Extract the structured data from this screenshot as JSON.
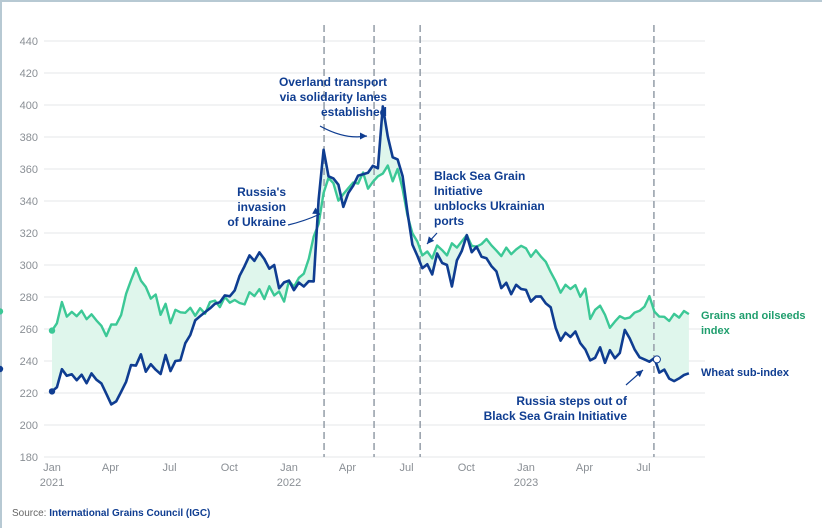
{
  "chart_data": {
    "type": "line",
    "title": "",
    "xlabel": "",
    "ylabel": "",
    "ylim": [
      180,
      440
    ],
    "yticks": [
      180,
      200,
      220,
      240,
      260,
      280,
      300,
      320,
      340,
      360,
      380,
      400,
      420,
      440
    ],
    "xlim": [
      "2021-01-01",
      "2023-09-15"
    ],
    "xticks": [
      {
        "date": "2021-01-01",
        "label": "Jan",
        "year": "2021"
      },
      {
        "date": "2021-04-01",
        "label": "Apr",
        "year": ""
      },
      {
        "date": "2021-07-01",
        "label": "Jul",
        "year": ""
      },
      {
        "date": "2021-10-01",
        "label": "Oct",
        "year": ""
      },
      {
        "date": "2022-01-01",
        "label": "Jan",
        "year": "2022"
      },
      {
        "date": "2022-04-01",
        "label": "Apr",
        "year": ""
      },
      {
        "date": "2022-07-01",
        "label": "Jul",
        "year": ""
      },
      {
        "date": "2022-10-01",
        "label": "Oct",
        "year": ""
      },
      {
        "date": "2023-01-01",
        "label": "Jan",
        "year": "2023"
      },
      {
        "date": "2023-04-01",
        "label": "Apr",
        "year": ""
      },
      {
        "date": "2023-07-01",
        "label": "Jul",
        "year": ""
      }
    ],
    "grid": true,
    "series": [
      {
        "name": "Grains and oilseeds index",
        "color": "#3cc896",
        "x_months": [
          0,
          0.25,
          0.5,
          0.75,
          1,
          1.25,
          1.5,
          1.75,
          2,
          2.25,
          2.5,
          2.75,
          3,
          3.25,
          3.5,
          3.75,
          4,
          4.25,
          4.5,
          4.75,
          5,
          5.25,
          5.5,
          5.75,
          6,
          6.25,
          6.5,
          6.75,
          7,
          7.25,
          7.5,
          7.75,
          8,
          8.25,
          8.5,
          8.75,
          9,
          9.25,
          9.5,
          9.75,
          10,
          10.25,
          10.5,
          10.75,
          11,
          11.25,
          11.5,
          11.75,
          12,
          12.25,
          12.5,
          12.75,
          13,
          13.25,
          13.5,
          13.75,
          14,
          14.25,
          14.5,
          14.75,
          15,
          15.25,
          15.5,
          15.75,
          16,
          16.25,
          16.5,
          16.75,
          17,
          17.25,
          17.5,
          17.75,
          18,
          18.25,
          18.5,
          18.75,
          19,
          19.25,
          19.5,
          19.75,
          20,
          20.25,
          20.5,
          20.75,
          21,
          21.25,
          21.5,
          21.75,
          22,
          22.25,
          22.5,
          22.75,
          23,
          23.25,
          23.5,
          23.75,
          24,
          24.25,
          24.5,
          24.75,
          25,
          25.25,
          25.5,
          25.75,
          26,
          26.25,
          26.5,
          26.75,
          27,
          27.25,
          27.5,
          27.75,
          28,
          28.25,
          28.5,
          28.75,
          29,
          29.25,
          29.5,
          29.75,
          30,
          30.25,
          30.5,
          30.75,
          31,
          31.25,
          31.5,
          31.75,
          32,
          32.25
        ],
        "values": [
          259,
          264,
          276,
          268,
          270,
          268,
          271,
          267,
          269,
          266,
          262,
          256,
          262,
          263,
          268,
          282,
          290,
          299,
          290,
          287,
          279,
          282,
          268,
          276,
          263,
          272,
          270,
          271,
          273,
          269,
          273,
          270,
          276,
          278,
          273,
          280,
          276,
          279,
          276,
          276,
          283,
          281,
          284,
          279,
          286,
          281,
          283,
          278,
          290,
          287,
          292,
          295,
          303,
          318,
          325,
          345,
          354,
          352,
          340,
          345,
          348,
          352,
          350,
          358,
          347,
          352,
          355,
          358,
          362,
          353,
          360,
          348,
          330,
          320,
          314,
          306,
          308,
          305,
          312,
          310,
          306,
          314,
          310,
          315,
          318,
          312,
          311,
          314,
          316,
          313,
          309,
          306,
          310,
          307,
          309,
          312,
          310,
          306,
          309,
          306,
          302,
          296,
          289,
          283,
          287,
          285,
          287,
          281,
          285,
          267,
          272,
          275,
          268,
          261,
          264,
          268,
          266,
          268,
          270,
          272,
          274,
          281,
          270,
          268,
          267,
          265,
          269,
          268,
          271,
          270,
          271
        ]
      },
      {
        "name": "Wheat sub-index",
        "color": "#0f3d91",
        "x_months": [
          0,
          0.25,
          0.5,
          0.75,
          1,
          1.25,
          1.5,
          1.75,
          2,
          2.25,
          2.5,
          2.75,
          3,
          3.25,
          3.5,
          3.75,
          4,
          4.25,
          4.5,
          4.75,
          5,
          5.25,
          5.5,
          5.75,
          6,
          6.25,
          6.5,
          6.75,
          7,
          7.25,
          7.5,
          7.75,
          8,
          8.25,
          8.5,
          8.75,
          9,
          9.25,
          9.5,
          9.75,
          10,
          10.25,
          10.5,
          10.75,
          11,
          11.25,
          11.5,
          11.75,
          12,
          12.25,
          12.5,
          12.75,
          13,
          13.25,
          13.5,
          13.75,
          14,
          14.25,
          14.5,
          14.75,
          15,
          15.25,
          15.5,
          15.75,
          16,
          16.25,
          16.5,
          16.75,
          17,
          17.25,
          17.5,
          17.75,
          18,
          18.25,
          18.5,
          18.75,
          19,
          19.25,
          19.5,
          19.75,
          20,
          20.25,
          20.5,
          20.75,
          21,
          21.25,
          21.5,
          21.75,
          22,
          22.25,
          22.5,
          22.75,
          23,
          23.25,
          23.5,
          23.75,
          24,
          24.25,
          24.5,
          24.75,
          25,
          25.25,
          25.5,
          25.75,
          26,
          26.25,
          26.5,
          26.75,
          27,
          27.25,
          27.5,
          27.75,
          28,
          28.25,
          28.5,
          28.75,
          29,
          29.25,
          29.5,
          29.75,
          30,
          30.25,
          30.5,
          30.75,
          31,
          31.25,
          31.5,
          31.75,
          32,
          32.25
        ],
        "values": [
          221,
          224,
          234,
          231,
          231,
          228,
          231,
          227,
          232,
          229,
          226,
          220,
          212,
          215,
          220,
          227,
          237,
          238,
          244,
          234,
          238,
          235,
          231,
          244,
          233,
          240,
          240,
          252,
          256,
          266,
          268,
          271,
          272,
          276,
          276,
          281,
          280,
          285,
          293,
          300,
          306,
          303,
          307,
          304,
          297,
          300,
          285,
          290,
          290,
          285,
          289,
          287,
          289,
          290,
          340,
          372,
          355,
          355,
          350,
          337,
          345,
          350,
          355,
          357,
          357,
          362,
          360,
          400,
          380,
          368,
          366,
          356,
          332,
          313,
          305,
          298,
          300,
          295,
          307,
          302,
          300,
          287,
          302,
          309,
          318,
          308,
          311,
          306,
          304,
          300,
          296,
          286,
          288,
          282,
          287,
          285,
          284,
          278,
          280,
          281,
          276,
          274,
          260,
          253,
          257,
          255,
          258,
          252,
          247,
          241,
          242,
          249,
          238,
          247,
          241,
          245,
          259,
          255,
          247,
          243,
          241,
          240,
          241,
          233,
          234,
          229,
          227,
          230,
          231,
          233,
          235
        ]
      }
    ],
    "annotations": [
      {
        "id": "invasion",
        "date": "2022-02-24",
        "lines": [
          "Russia's",
          "invasion",
          "of Ukraine"
        ]
      },
      {
        "id": "solidarity",
        "date": "2022-05-12",
        "lines": [
          "Overland transport",
          "via solidarity lanes",
          "established"
        ]
      },
      {
        "id": "bsgi",
        "date": "2022-07-22",
        "lines": [
          "Black Sea Grain",
          "Initiative",
          "unblocks Ukrainian",
          "ports"
        ]
      },
      {
        "id": "exit",
        "date": "2023-07-17",
        "lines": [
          "Russia steps out of",
          "Black Sea Grain Initiative"
        ]
      }
    ],
    "legend": [
      {
        "series": "Grains and oilseeds index",
        "lines": [
          "Grains and oilseeds",
          "index"
        ],
        "placement": "right"
      },
      {
        "series": "Wheat sub-index",
        "lines": [
          "Wheat sub-index"
        ],
        "placement": "right"
      }
    ]
  },
  "source": {
    "prefix": "Source: ",
    "name": "International Grains Council (IGC)"
  }
}
